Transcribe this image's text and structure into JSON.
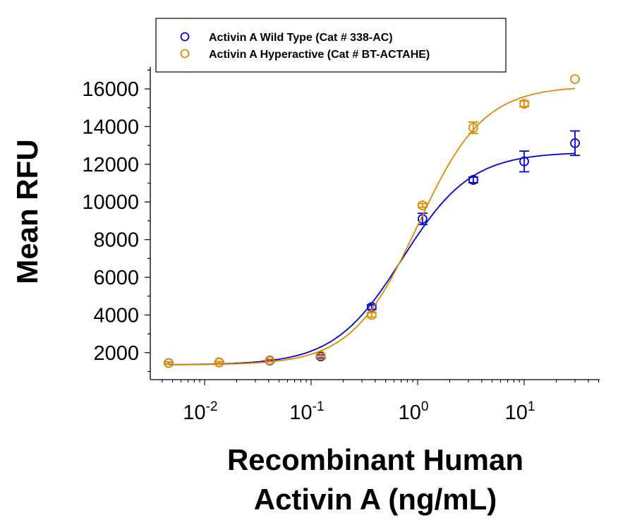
{
  "chart_data": {
    "type": "scatter",
    "title": "",
    "xlabel_line1": "Recombinant Human",
    "xlabel_line2": "Activin A (ng/mL)",
    "ylabel": "Mean RFU",
    "x_scale": "log",
    "xlim": [
      0.003,
      50
    ],
    "ylim": [
      500,
      17200
    ],
    "x_ticks": [
      {
        "base": "10",
        "exp": "-2",
        "value": 0.01
      },
      {
        "base": "10",
        "exp": "-1",
        "value": 0.1
      },
      {
        "base": "10",
        "exp": "0",
        "value": 1
      },
      {
        "base": "10",
        "exp": "1",
        "value": 10
      }
    ],
    "y_ticks": [
      "2000",
      "4000",
      "6000",
      "8000",
      "10000",
      "12000",
      "14000",
      "16000"
    ],
    "grid": false,
    "legend_placement": "top",
    "series": [
      {
        "name": "Activin A Wild Type (Cat # 338-AC)",
        "color": "#0000dd",
        "x": [
          0.0046,
          0.0137,
          0.041,
          0.123,
          0.37,
          1.11,
          3.33,
          10,
          30
        ],
        "y": [
          1450,
          1480,
          1580,
          1800,
          4420,
          9100,
          11170,
          12150,
          13120
        ],
        "err": [
          60,
          50,
          60,
          80,
          120,
          300,
          150,
          550,
          650
        ],
        "fit": {
          "bottom": 1350,
          "top": 12650,
          "ec50": 0.72,
          "hill": 1.35
        }
      },
      {
        "name": "Activin A Hyperactive (Cat # BT-ACTAHE)",
        "color": "#e08a00",
        "x": [
          0.0046,
          0.0137,
          0.041,
          0.123,
          0.37,
          1.11,
          3.33,
          10,
          30
        ],
        "y": [
          1450,
          1480,
          1600,
          1850,
          4010,
          9820,
          13940,
          15210,
          16520
        ],
        "err": [
          60,
          50,
          60,
          80,
          120,
          100,
          300,
          150,
          0
        ],
        "fit": {
          "bottom": 1350,
          "top": 16150,
          "ec50": 1.0,
          "hill": 1.4
        }
      }
    ]
  }
}
